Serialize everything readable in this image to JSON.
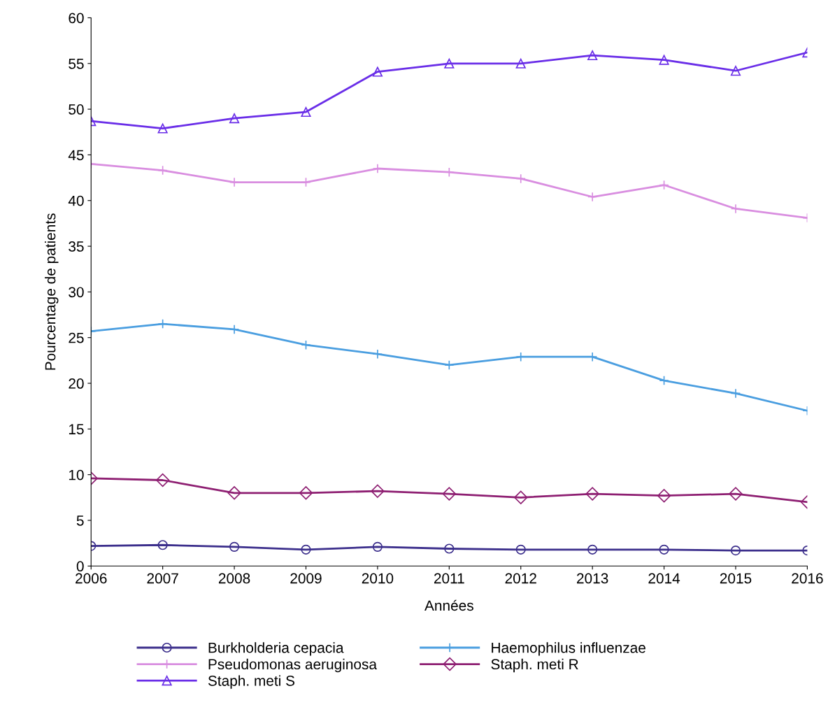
{
  "chart_data": {
    "type": "line",
    "xlabel": "Années",
    "ylabel": "Pourcentage de patients",
    "x": [
      2006,
      2007,
      2008,
      2009,
      2010,
      2011,
      2012,
      2013,
      2014,
      2015,
      2016
    ],
    "xlim": [
      2006,
      2016
    ],
    "xticks": [
      2006,
      2007,
      2008,
      2009,
      2010,
      2011,
      2012,
      2013,
      2014,
      2015,
      2016
    ],
    "ylim": [
      0,
      60
    ],
    "yticks": [
      0,
      5,
      10,
      15,
      20,
      25,
      30,
      35,
      40,
      45,
      50,
      55,
      60
    ],
    "grid": false,
    "legend": "bottom",
    "line_style": "solid",
    "series": [
      {
        "name": "Burkholderia cepacia",
        "color": "#3c2f8c",
        "marker": "circle",
        "values": [
          2.2,
          2.3,
          2.1,
          1.8,
          2.1,
          1.9,
          1.8,
          1.8,
          1.8,
          1.7,
          1.7
        ]
      },
      {
        "name": "Haemophilus influenzae",
        "color": "#4a9ee0",
        "marker": "cross",
        "values": [
          25.7,
          26.5,
          25.9,
          24.2,
          23.2,
          22.0,
          22.9,
          22.9,
          20.3,
          18.9,
          17.0
        ]
      },
      {
        "name": "Pseudomonas aeruginosa",
        "color": "#d98ee0",
        "marker": "cross",
        "values": [
          44.0,
          43.3,
          42.0,
          42.0,
          43.5,
          43.1,
          42.4,
          40.4,
          41.7,
          39.1,
          38.1
        ]
      },
      {
        "name": "Staph. meti R",
        "color": "#8e1f72",
        "marker": "diamond",
        "values": [
          9.6,
          9.4,
          8.0,
          8.0,
          8.2,
          7.9,
          7.5,
          7.9,
          7.7,
          7.9,
          7.0
        ]
      },
      {
        "name": "Staph. meti S",
        "color": "#6a2ee8",
        "marker": "triangle",
        "values": [
          48.7,
          47.9,
          49.0,
          49.7,
          54.1,
          55.0,
          55.0,
          55.9,
          55.4,
          54.2,
          56.2
        ]
      }
    ]
  }
}
